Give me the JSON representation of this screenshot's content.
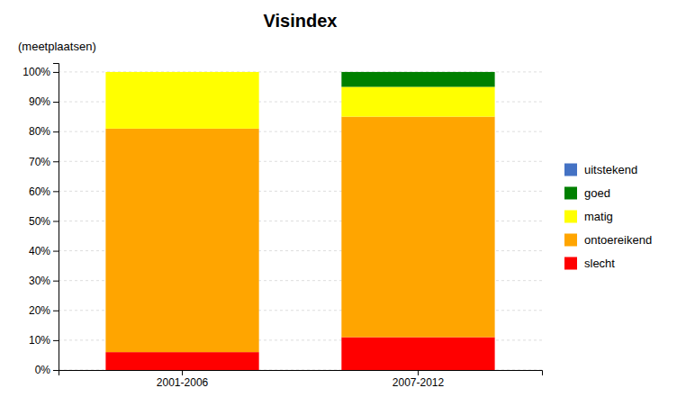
{
  "chart_data": {
    "type": "bar",
    "stacked": true,
    "title": "Visindex",
    "ylabel": "(meetplaatsen)",
    "categories": [
      "2001-2006",
      "2007-2012"
    ],
    "series": [
      {
        "name": "slecht",
        "color": "#FF0000",
        "values": [
          6,
          11
        ]
      },
      {
        "name": "ontoereikend",
        "color": "#FFA500",
        "values": [
          75,
          74
        ]
      },
      {
        "name": "matig",
        "color": "#FFFF00",
        "values": [
          19,
          10
        ]
      },
      {
        "name": "goed",
        "color": "#008000",
        "values": [
          0,
          5
        ]
      },
      {
        "name": "uitstekend",
        "color": "#4472C4",
        "values": [
          0,
          0
        ]
      }
    ],
    "ylim": [
      0,
      103
    ],
    "yticks": [
      {
        "value": 0,
        "label": "0%"
      },
      {
        "value": 10,
        "label": "10%"
      },
      {
        "value": 20,
        "label": "20%"
      },
      {
        "value": 30,
        "label": "30%"
      },
      {
        "value": 40,
        "label": "40%"
      },
      {
        "value": 50,
        "label": "50%"
      },
      {
        "value": 60,
        "label": "60%"
      },
      {
        "value": 70,
        "label": "70%"
      },
      {
        "value": 80,
        "label": "80%"
      },
      {
        "value": 90,
        "label": "90%"
      },
      {
        "value": 100,
        "label": "100%"
      }
    ],
    "grid": true,
    "legend": "right"
  }
}
